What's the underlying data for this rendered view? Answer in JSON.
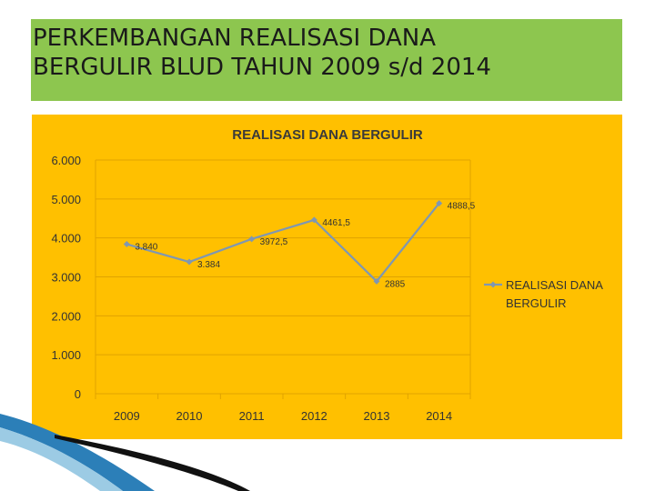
{
  "slide": {
    "title_line1": "PERKEMBANGAN REALISASI DANA",
    "title_line2": "BERGULIR BLUD TAHUN 2009 s/d 2014"
  },
  "colors": {
    "title_bg": "#8DC64F",
    "chart_bg": "#FFC000",
    "series_line": "#7F97B2",
    "grid": "#E0A300"
  },
  "chart_data": {
    "type": "line",
    "title": "REALISASI DANA BERGULIR",
    "categories": [
      "2009",
      "2010",
      "2011",
      "2012",
      "2013",
      "2014"
    ],
    "y_ticks": [
      "0",
      "1.000",
      "2.000",
      "3.000",
      "4.000",
      "5.000",
      "6.000"
    ],
    "ylim": [
      0,
      6000
    ],
    "grid": true,
    "legend_position": "right",
    "series": [
      {
        "name": "REALISASI DANA BERGULIR",
        "values": [
          3840,
          3384,
          3972.5,
          4461.5,
          2885,
          4888.5
        ],
        "data_labels": [
          "3.840",
          "3.384",
          "3972,5",
          "4461,5",
          "2885",
          "4888,5"
        ]
      }
    ]
  }
}
